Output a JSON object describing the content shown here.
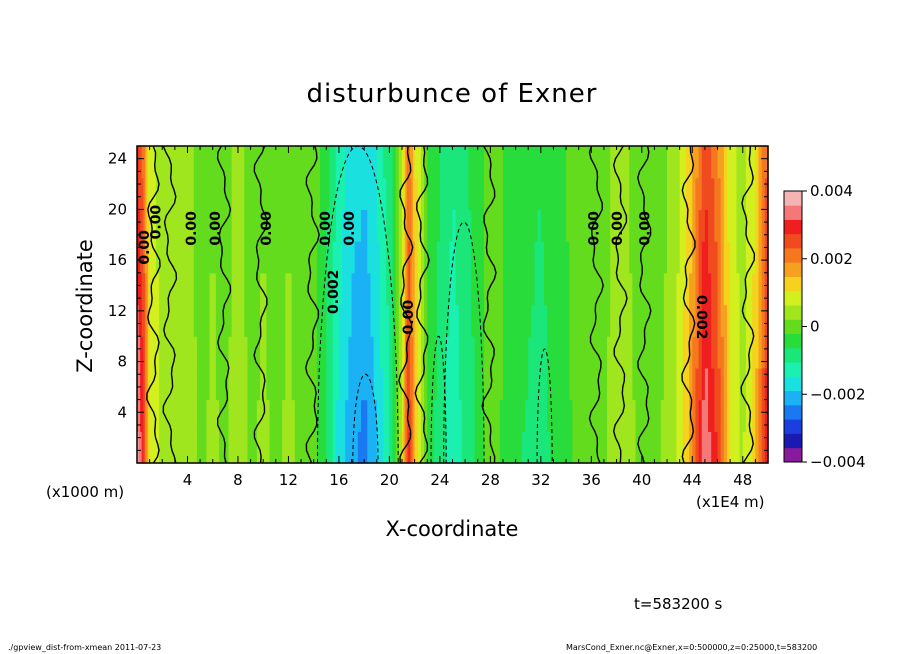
{
  "chart_data": {
    "type": "heatmap",
    "title": "disturbunce of Exner",
    "xlabel": "X-coordinate",
    "ylabel": "Z-coordinate",
    "x_unit_left": "(x1000 m)",
    "x_unit_right": "(x1E4 m)",
    "xlim": [
      0,
      50
    ],
    "ylim": [
      0,
      25
    ],
    "x_ticks": [
      "4",
      "8",
      "12",
      "16",
      "20",
      "24",
      "28",
      "32",
      "36",
      "40",
      "44",
      "48"
    ],
    "y_ticks": [
      "4",
      "8",
      "12",
      "16",
      "20",
      "24"
    ],
    "colorbar": {
      "range": [
        -0.004,
        0.004
      ],
      "tick_labels": [
        "0.004",
        "0.002",
        "0",
        "−0.002",
        "−0.004"
      ],
      "colors": [
        "#8a1a9c",
        "#1a1ab0",
        "#1a3ee0",
        "#1a78f0",
        "#1ab2f5",
        "#1ae0e0",
        "#1af0b0",
        "#1ae67a",
        "#28dc3c",
        "#64dc1e",
        "#a0e61e",
        "#d2f01e",
        "#f5d21e",
        "#f5a01e",
        "#f5781e",
        "#f04b1e",
        "#f01e1e",
        "#f57878",
        "#f5b4b4"
      ]
    },
    "columns": [
      {
        "x": 0.0,
        "v": 0.0028
      },
      {
        "x": 0.5,
        "v": 0.0022
      },
      {
        "x": 1.0,
        "v": 0.0008
      },
      {
        "x": 2.0,
        "v": 0.0004
      },
      {
        "x": 3.0,
        "v": 0.0002
      },
      {
        "x": 4.0,
        "v": 0.0003
      },
      {
        "x": 5.0,
        "v": 0.0001
      },
      {
        "x": 6.0,
        "v": 0.0002
      },
      {
        "x": 7.0,
        "v": 0.0001
      },
      {
        "x": 8.0,
        "v": 0.0003
      },
      {
        "x": 9.0,
        "v": 0.0001
      },
      {
        "x": 10.0,
        "v": 0.0002
      },
      {
        "x": 11.0,
        "v": 0.0001
      },
      {
        "x": 12.0,
        "v": 0.0002
      },
      {
        "x": 13.0,
        "v": 0.0001
      },
      {
        "x": 14.0,
        "v": 0.0
      },
      {
        "x": 15.0,
        "v": -0.0005
      },
      {
        "x": 16.0,
        "v": -0.0012
      },
      {
        "x": 17.0,
        "v": -0.0016
      },
      {
        "x": 18.0,
        "v": -0.0018
      },
      {
        "x": 19.0,
        "v": -0.0014
      },
      {
        "x": 20.0,
        "v": -0.0008
      },
      {
        "x": 21.0,
        "v": 0.0006
      },
      {
        "x": 21.5,
        "v": 0.0022
      },
      {
        "x": 22.0,
        "v": 0.0012
      },
      {
        "x": 23.0,
        "v": -0.0003
      },
      {
        "x": 24.0,
        "v": -0.0006
      },
      {
        "x": 25.0,
        "v": -0.001
      },
      {
        "x": 26.0,
        "v": -0.0007
      },
      {
        "x": 27.0,
        "v": -0.0004
      },
      {
        "x": 28.0,
        "v": 0.0001
      },
      {
        "x": 29.0,
        "v": -0.0002
      },
      {
        "x": 30.0,
        "v": -0.0004
      },
      {
        "x": 31.0,
        "v": -0.0005
      },
      {
        "x": 32.0,
        "v": -0.0006
      },
      {
        "x": 33.0,
        "v": -0.0004
      },
      {
        "x": 34.0,
        "v": -0.0002
      },
      {
        "x": 35.0,
        "v": -0.0001
      },
      {
        "x": 36.0,
        "v": 0.0
      },
      {
        "x": 37.0,
        "v": 0.0001
      },
      {
        "x": 38.0,
        "v": 0.0003
      },
      {
        "x": 39.0,
        "v": 0.0002
      },
      {
        "x": 40.0,
        "v": 0.0001
      },
      {
        "x": 41.0,
        "v": 0.0001
      },
      {
        "x": 42.0,
        "v": 0.0002
      },
      {
        "x": 43.0,
        "v": 0.0006
      },
      {
        "x": 44.0,
        "v": 0.0014
      },
      {
        "x": 45.0,
        "v": 0.0026
      },
      {
        "x": 46.0,
        "v": 0.002
      },
      {
        "x": 47.0,
        "v": 0.0008
      },
      {
        "x": 48.0,
        "v": 0.0004
      },
      {
        "x": 49.0,
        "v": 0.001
      },
      {
        "x": 50.0,
        "v": 0.0024
      }
    ],
    "contour_labels": [
      {
        "text": "0.00",
        "x": 1.5,
        "y": 17
      },
      {
        "text": "0.00",
        "x": 3.0,
        "y": 19
      },
      {
        "text": "0.00",
        "x": 7.5,
        "y": 18.5
      },
      {
        "text": "0.00",
        "x": 10.5,
        "y": 18.5
      },
      {
        "text": "0.00",
        "x": 17.0,
        "y": 18.5
      },
      {
        "text": "0.00",
        "x": 24.5,
        "y": 18.5
      },
      {
        "text": "0.00",
        "x": 27.5,
        "y": 18.5
      },
      {
        "text": "0.002",
        "x": 25.5,
        "y": 13.5
      },
      {
        "text": "0.00",
        "x": 35.0,
        "y": 11.5
      },
      {
        "text": "0.00",
        "x": 58.5,
        "y": 18.5
      },
      {
        "text": "0.00",
        "x": 61.5,
        "y": 18.5
      },
      {
        "text": "0.00",
        "x": 65.0,
        "y": 18.5
      },
      {
        "text": "0.002",
        "x": 71.0,
        "y": 11.5
      }
    ]
  },
  "time_label": "t=583200 s",
  "footer_left": "./gpview_dist-from-xmean   2011-07-23",
  "footer_right": "MarsCond_Exner.nc@Exner,x=0:500000,z=0:25000,t=583200"
}
